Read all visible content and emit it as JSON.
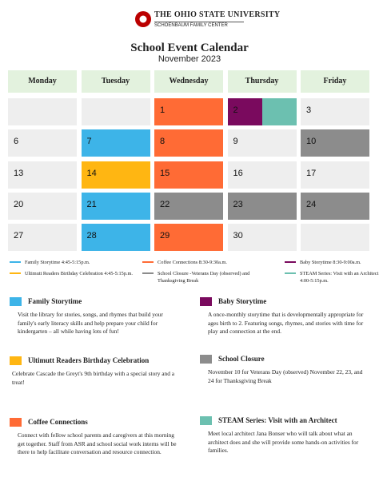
{
  "header": {
    "org": "THE OHIO STATE UNIVERSITY",
    "unit": "SCHOENBAUM FAMILY CENTER"
  },
  "title": "School Event Calendar",
  "subtitle": "November 2023",
  "calendar": {
    "header_color": "#e3f2de",
    "days": [
      "Monday",
      "Tuesday",
      "Wednesday",
      "Thursday",
      "Friday"
    ],
    "weeks": [
      [
        {
          "color": "#eeeeee"
        },
        {
          "color": "#eeeeee"
        },
        {
          "day": 1,
          "color": "#ff6b35"
        },
        {
          "day": 2,
          "color": [
            "#7a0a5e",
            "#6cc0b0"
          ]
        },
        {
          "day": 3,
          "color": "#eeeeee"
        }
      ],
      [
        {
          "day": 6,
          "color": "#eeeeee"
        },
        {
          "day": 7,
          "color": "#3db4e8"
        },
        {
          "day": 8,
          "color": "#ff6b35"
        },
        {
          "day": 9,
          "color": "#eeeeee"
        },
        {
          "day": 10,
          "color": "#8c8c8c"
        }
      ],
      [
        {
          "day": 13,
          "color": "#eeeeee"
        },
        {
          "day": 14,
          "color": "#ffb612"
        },
        {
          "day": 15,
          "color": "#ff6b35"
        },
        {
          "day": 16,
          "color": "#eeeeee"
        },
        {
          "day": 17,
          "color": "#eeeeee"
        }
      ],
      [
        {
          "day": 20,
          "color": "#eeeeee"
        },
        {
          "day": 21,
          "color": "#3db4e8"
        },
        {
          "day": 22,
          "color": "#8c8c8c"
        },
        {
          "day": 23,
          "color": "#8c8c8c"
        },
        {
          "day": 24,
          "color": "#8c8c8c"
        }
      ],
      [
        {
          "day": 27,
          "color": "#eeeeee"
        },
        {
          "day": 28,
          "color": "#3db4e8"
        },
        {
          "day": 29,
          "color": "#ff6b35"
        },
        {
          "day": 30,
          "color": "#eeeeee"
        },
        {
          "color": "#eeeeee"
        }
      ]
    ]
  },
  "legend": [
    {
      "text": "Family Storytime 4:45-5:15p.m.",
      "color": "#3db4e8"
    },
    {
      "text": "Coffee Connections 8:30-9:30a.m.",
      "color": "#ff6b35"
    },
    {
      "text": "Baby Storytime 8:30-9:00a.m.",
      "color": "#7a0a5e"
    },
    {
      "text": "Ultimutt Readers Birthday Celebration 4:45-5:15p.m.",
      "color": "#ffb612"
    },
    {
      "text": "School Closure -Veterans Day (observed) and Thanksgiving Break",
      "color": "#8c8c8c"
    },
    {
      "text": "STEAM Series: Visit with an Architect 4:00-5:15p.m.",
      "color": "#6cc0b0"
    }
  ],
  "events": [
    {
      "title": "Family Storytime",
      "color": "#3db4e8",
      "text": "Visit the library for stories, songs, and rhymes that build your family's early literacy skills and help prepare your child for kindergarten – all while having lots of fun!"
    },
    {
      "title": "Ultimutt Readers Birthday Celebration",
      "color": "#ffb612",
      "text": "Celebrate Cascade the Greyt's 9th birthday with a special story and a treat!"
    },
    {
      "title": "Coffee Connections",
      "color": "#ff6b35",
      "text": "Connect with fellow school parents and caregivers at this morning get together. Staff from ASR and school social work interns will be there to help facilitate conversation and resource connection."
    },
    {
      "title": "Baby Storytime",
      "color": "#7a0a5e",
      "text": "A once-monthly storytime that is developmentally appropriate for ages birth to 2. Featuring songs, rhymes, and stories with time for play and connection at the end."
    },
    {
      "title": "School Closure",
      "color": "#8c8c8c",
      "text": "November 10 for Veterans Day (observed) November 22, 23, and 24 for Thanksgiving Break"
    },
    {
      "title": "STEAM Series: Visit with an Architect",
      "color": "#6cc0b0",
      "text": "Meet local architect Jana Bonser who will talk about what an architect does and she will provide some hands-on activities for families."
    }
  ]
}
